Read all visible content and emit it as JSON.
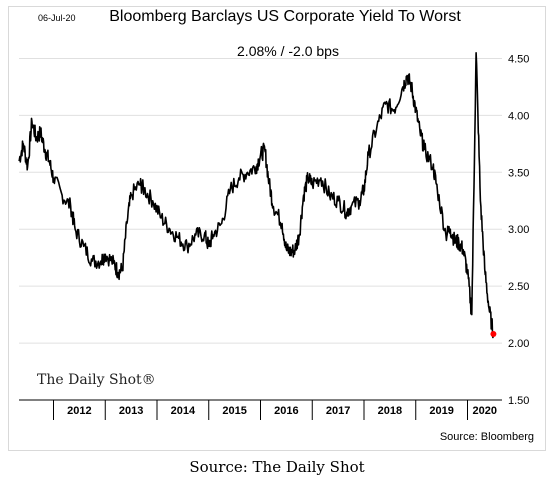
{
  "header": {
    "date": "06-Jul-20",
    "title": "Bloomberg Barclays US Corporate Yield To Worst",
    "subtitle": "2.08%  /  -2.0 bps"
  },
  "watermark": "The Daily Shot®",
  "source": "Source: Bloomberg",
  "caption": "Source: The Daily Shot",
  "chart_data": {
    "type": "line",
    "title": "Bloomberg Barclays US Corporate Yield To Worst",
    "x_axis": {
      "range": [
        "2011-05",
        "2020-09"
      ],
      "tick_labels": [
        "2012",
        "2013",
        "2014",
        "2015",
        "2016",
        "2017",
        "2018",
        "2019",
        "2020"
      ]
    },
    "y_axis": {
      "position": "right",
      "range": [
        1.5,
        4.75
      ],
      "ticks": [
        1.5,
        2.0,
        2.5,
        3.0,
        3.5,
        4.0,
        4.5
      ],
      "tick_labels": [
        "1.50",
        "2.00",
        "2.50",
        "3.00",
        "3.50",
        "4.00",
        "4.50"
      ]
    },
    "grid": "horizontal",
    "colors": {
      "line": "#000000",
      "last_point": "#ff0000",
      "grid": "#e0e0e0"
    },
    "series": [
      {
        "points": [
          [
            "2011-05",
            3.6
          ],
          [
            "2011-06",
            3.75
          ],
          [
            "2011-07",
            3.55
          ],
          [
            "2011-08",
            3.95
          ],
          [
            "2011-09",
            3.8
          ],
          [
            "2011-10",
            3.85
          ],
          [
            "2011-11",
            3.7
          ],
          [
            "2011-12",
            3.6
          ],
          [
            "2012-01",
            3.45
          ],
          [
            "2012-03",
            3.3
          ],
          [
            "2012-05",
            3.2
          ],
          [
            "2012-06",
            3.0
          ],
          [
            "2012-08",
            2.85
          ],
          [
            "2012-10",
            2.72
          ],
          [
            "2012-12",
            2.72
          ],
          [
            "2013-01",
            2.78
          ],
          [
            "2013-03",
            2.7
          ],
          [
            "2013-04",
            2.62
          ],
          [
            "2013-05",
            2.65
          ],
          [
            "2013-06",
            3.05
          ],
          [
            "2013-07",
            3.3
          ],
          [
            "2013-09",
            3.4
          ],
          [
            "2013-10",
            3.35
          ],
          [
            "2013-12",
            3.25
          ],
          [
            "2014-02",
            3.1
          ],
          [
            "2014-04",
            3.0
          ],
          [
            "2014-06",
            2.92
          ],
          [
            "2014-08",
            2.85
          ],
          [
            "2014-10",
            2.95
          ],
          [
            "2014-12",
            2.95
          ],
          [
            "2015-01",
            2.85
          ],
          [
            "2015-02",
            2.95
          ],
          [
            "2015-04",
            3.05
          ],
          [
            "2015-06",
            3.35
          ],
          [
            "2015-08",
            3.45
          ],
          [
            "2015-10",
            3.5
          ],
          [
            "2015-12",
            3.55
          ],
          [
            "2016-01",
            3.65
          ],
          [
            "2016-02",
            3.7
          ],
          [
            "2016-03",
            3.4
          ],
          [
            "2016-04",
            3.2
          ],
          [
            "2016-06",
            3.05
          ],
          [
            "2016-07",
            2.82
          ],
          [
            "2016-08",
            2.8
          ],
          [
            "2016-09",
            2.82
          ],
          [
            "2016-10",
            2.95
          ],
          [
            "2016-11",
            3.3
          ],
          [
            "2016-12",
            3.45
          ],
          [
            "2017-01",
            3.4
          ],
          [
            "2017-03",
            3.45
          ],
          [
            "2017-05",
            3.3
          ],
          [
            "2017-07",
            3.25
          ],
          [
            "2017-09",
            3.15
          ],
          [
            "2017-10",
            3.2
          ],
          [
            "2017-12",
            3.25
          ],
          [
            "2018-01",
            3.35
          ],
          [
            "2018-02",
            3.65
          ],
          [
            "2018-04",
            3.9
          ],
          [
            "2018-06",
            4.1
          ],
          [
            "2018-08",
            4.05
          ],
          [
            "2018-10",
            4.25
          ],
          [
            "2018-11",
            4.35
          ],
          [
            "2018-12",
            4.25
          ],
          [
            "2019-01",
            4.05
          ],
          [
            "2019-02",
            3.85
          ],
          [
            "2019-03",
            3.7
          ],
          [
            "2019-05",
            3.55
          ],
          [
            "2019-06",
            3.35
          ],
          [
            "2019-08",
            2.95
          ],
          [
            "2019-09",
            3.0
          ],
          [
            "2019-10",
            2.9
          ],
          [
            "2019-11",
            2.88
          ],
          [
            "2019-12",
            2.82
          ],
          [
            "2020-01",
            2.62
          ],
          [
            "2020-02",
            2.25
          ],
          [
            "2020-03",
            4.55
          ],
          [
            "2020-04",
            3.25
          ],
          [
            "2020-05",
            2.65
          ],
          [
            "2020-06",
            2.3
          ],
          [
            "2020-07",
            2.08
          ]
        ]
      }
    ],
    "last_value": 2.08
  }
}
